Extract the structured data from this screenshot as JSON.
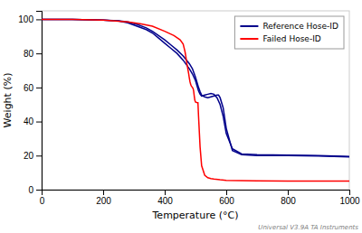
{
  "chart_data": {
    "type": "line",
    "x_label": "Temperature (°C)",
    "y_label": "Weight (%)",
    "annotations": [
      {
        "text": "Universal V3.9A TA Instruments"
      }
    ],
    "xlim": [
      0,
      1000
    ],
    "ylim": [
      0,
      105
    ],
    "xticks": [
      0,
      200,
      400,
      600,
      800,
      1000
    ],
    "yticks": [
      0,
      20,
      40,
      60,
      80,
      100
    ],
    "grid": false,
    "legend": "upper right",
    "series": [
      {
        "name": "Reference Hose-ID",
        "color": "#00008B",
        "x": [
          0,
          100,
          200,
          250,
          280,
          310,
          340,
          360,
          380,
          400,
          420,
          440,
          460,
          480,
          490,
          495,
          500,
          505,
          510,
          515,
          520,
          530,
          540,
          550,
          560,
          570,
          580,
          590,
          600,
          620,
          650,
          700,
          800,
          900,
          1000
        ],
        "values": [
          100,
          100,
          99.5,
          99,
          98,
          96,
          94,
          92,
          89,
          86,
          83,
          80,
          76,
          71,
          68,
          66,
          64,
          61,
          58,
          56,
          55,
          55.5,
          56,
          56.5,
          56,
          54,
          50,
          43,
          33,
          24,
          21,
          20.5,
          20.3,
          20,
          19.5
        ]
      },
      {
        "name": "Reference Hose-ID",
        "color": "#00008B",
        "x": [
          0,
          100,
          200,
          250,
          280,
          310,
          340,
          360,
          380,
          400,
          420,
          440,
          460,
          480,
          490,
          495,
          500,
          505,
          510,
          515,
          520,
          530,
          540,
          550,
          560,
          570,
          575,
          580,
          590,
          600,
          620,
          650,
          700,
          800,
          900,
          1000
        ],
        "values": [
          100,
          100,
          99.5,
          99.2,
          98.5,
          97,
          95,
          93,
          90.5,
          88,
          85,
          82,
          78.5,
          74,
          71,
          68.5,
          66,
          63,
          60,
          57.5,
          55.5,
          54.5,
          54,
          54.5,
          55,
          55.5,
          55.5,
          54,
          48,
          36,
          23,
          20.5,
          20,
          20,
          19.8,
          19.2
        ]
      },
      {
        "name": "Failed Hose-ID",
        "color": "#FF0000",
        "x": [
          0,
          100,
          200,
          280,
          320,
          360,
          400,
          430,
          450,
          460,
          462,
          464,
          466,
          468,
          470,
          472,
          474,
          476,
          478,
          480,
          482,
          484,
          486,
          488,
          490,
          492,
          494,
          496,
          498,
          500,
          502,
          504,
          506,
          508,
          510,
          515,
          520,
          530,
          540,
          550,
          560,
          580,
          600,
          650,
          700,
          800,
          900,
          1000
        ],
        "values": [
          100,
          100,
          99.5,
          98.5,
          97.5,
          96,
          93,
          90.5,
          88,
          85.5,
          84,
          82.5,
          81,
          79,
          76.5,
          74,
          72,
          70,
          68,
          65.5,
          63.5,
          62,
          61,
          60.5,
          60,
          59.5,
          58,
          55,
          52.5,
          51.5,
          51.3,
          51.2,
          51.0,
          51.0,
          43,
          25,
          14,
          8.5,
          7,
          6.5,
          6.2,
          5.8,
          5.5,
          5.3,
          5.2,
          5.1,
          5.0,
          5.0
        ]
      }
    ]
  }
}
